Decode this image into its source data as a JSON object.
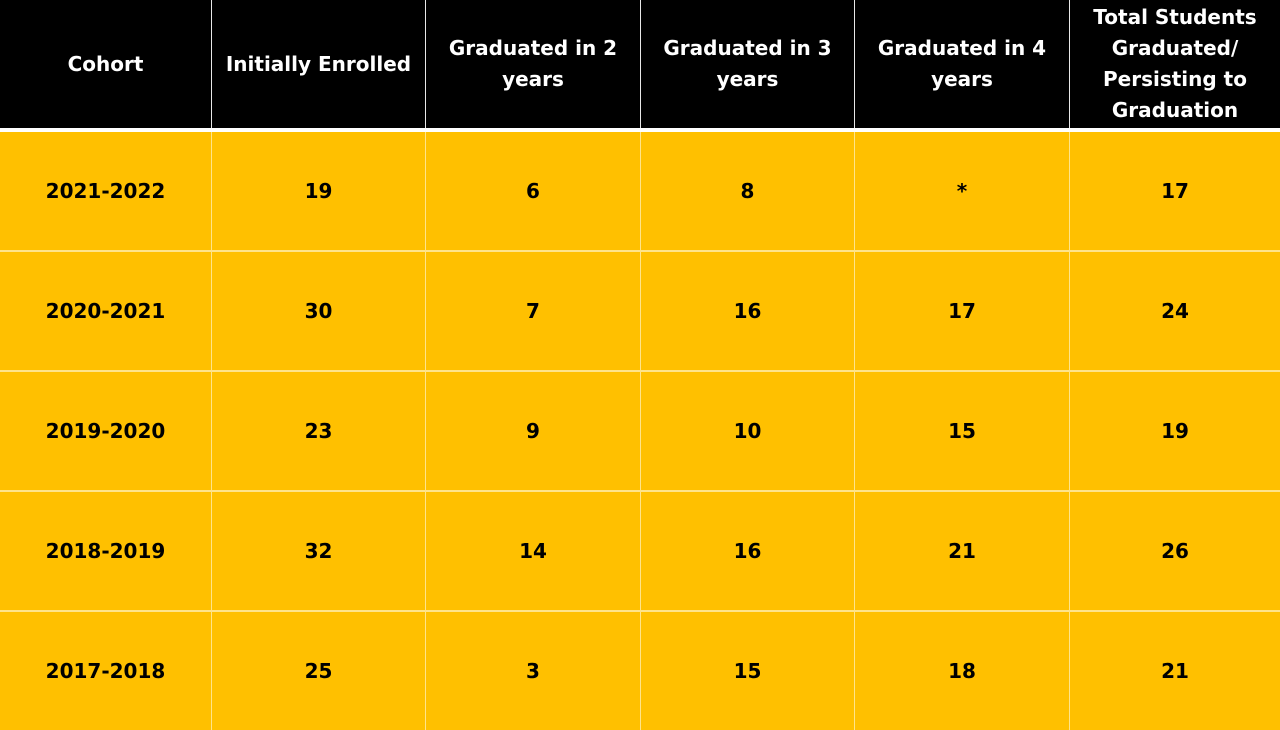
{
  "chart_data": {
    "type": "table",
    "columns": [
      "Cohort",
      "Initially Enrolled",
      "Graduated in 2 years",
      "Graduated in 3 years",
      "Graduated in 4 years",
      "Total Students Graduated/ Persisting to Graduation"
    ],
    "rows": [
      [
        "2021-2022",
        "19",
        "6",
        "8",
        "*",
        "17"
      ],
      [
        "2020-2021",
        "30",
        "7",
        "16",
        "17",
        "24"
      ],
      [
        "2019-2020",
        "23",
        "9",
        "10",
        "15",
        "19"
      ],
      [
        "2018-2019",
        "32",
        "14",
        "16",
        "21",
        "26"
      ],
      [
        "2017-2018",
        "25",
        "3",
        "15",
        "18",
        "21"
      ]
    ]
  },
  "colors": {
    "header_bg": "#000000",
    "header_text": "#ffffff",
    "body_bg": "#ffc000",
    "body_text": "#000000"
  }
}
